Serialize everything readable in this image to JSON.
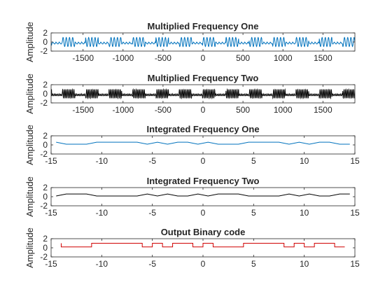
{
  "chart_data": [
    {
      "type": "line",
      "title": "Multiplied Frequency One",
      "ylabel": "Amplitude",
      "xlim": [
        -1900,
        1900
      ],
      "ylim": [
        -2,
        2
      ],
      "xticks": [
        -1500,
        -1000,
        -500,
        0,
        500,
        1000,
        1500
      ],
      "yticks": [
        -2,
        0,
        2
      ],
      "grid": false,
      "series": [
        {
          "color": "#0072BD",
          "kind": "modulated_oscillation",
          "amplitude": 1.0,
          "cycles_across_axis": 95
        }
      ]
    },
    {
      "type": "line",
      "title": "Multiplied Frequency Two",
      "ylabel": "Amplitude",
      "xlim": [
        -1900,
        1900
      ],
      "ylim": [
        -2,
        2
      ],
      "xticks": [
        -1500,
        -1000,
        -500,
        0,
        500,
        1000,
        1500
      ],
      "yticks": [
        -2,
        0,
        2
      ],
      "grid": false,
      "series": [
        {
          "color": "#000000",
          "kind": "modulated_oscillation",
          "amplitude": 1.0,
          "cycles_across_axis": 190
        }
      ]
    },
    {
      "type": "line",
      "title": "Integrated Frequency One",
      "ylabel": "Amplitude",
      "xlim": [
        -15,
        15
      ],
      "ylim": [
        -2,
        2
      ],
      "xticks": [
        -15,
        -10,
        -5,
        0,
        5,
        10,
        15
      ],
      "yticks": [
        -2,
        0,
        2
      ],
      "grid": false,
      "series": [
        {
          "color": "#0072BD",
          "x": [
            -14.5,
            -13.5,
            -12.5,
            -11.5,
            -10.5,
            -9.5,
            -8.5,
            -7.5,
            -6.5,
            -5.5,
            -4.5,
            -3.5,
            -2.5,
            -1.5,
            -0.5,
            0.5,
            1.5,
            2.5,
            3.5,
            4.5,
            5.5,
            6.5,
            7.5,
            8.5,
            9.5,
            10.5,
            11.5,
            12.5,
            13.5,
            14.5
          ],
          "y": [
            0.6,
            0.15,
            0.15,
            0.15,
            0.6,
            0.6,
            0.6,
            0.6,
            0.6,
            0.15,
            0.6,
            0.15,
            0.6,
            0.6,
            0.15,
            0.6,
            0.15,
            0.15,
            0.15,
            0.6,
            0.6,
            0.6,
            0.6,
            0.15,
            0.6,
            0.15,
            0.6,
            0.6,
            0.15,
            0.15
          ]
        }
      ]
    },
    {
      "type": "line",
      "title": "Integrated Frequency Two",
      "ylabel": "Amplitude",
      "xlim": [
        -15,
        15
      ],
      "ylim": [
        -2,
        2
      ],
      "xticks": [
        -15,
        -10,
        -5,
        0,
        5,
        10,
        15
      ],
      "yticks": [
        -2,
        0,
        2
      ],
      "grid": false,
      "series": [
        {
          "color": "#000000",
          "x": [
            -14.5,
            -13.5,
            -12.5,
            -11.5,
            -10.5,
            -9.5,
            -8.5,
            -7.5,
            -6.5,
            -5.5,
            -4.5,
            -3.5,
            -2.5,
            -1.5,
            -0.5,
            0.5,
            1.5,
            2.5,
            3.5,
            4.5,
            5.5,
            6.5,
            7.5,
            8.5,
            9.5,
            10.5,
            11.5,
            12.5,
            13.5,
            14.5
          ],
          "y": [
            0.15,
            0.6,
            0.6,
            0.6,
            0.15,
            0.15,
            0.15,
            0.15,
            0.15,
            0.6,
            0.15,
            0.6,
            0.15,
            0.15,
            0.6,
            0.15,
            0.6,
            0.6,
            0.6,
            0.15,
            0.15,
            0.15,
            0.15,
            0.6,
            0.15,
            0.6,
            0.15,
            0.15,
            0.6,
            0.6
          ]
        }
      ]
    },
    {
      "type": "line",
      "title": "Output Binary code",
      "ylabel": "Amplitude",
      "xlim": [
        -15,
        15
      ],
      "ylim": [
        -2,
        2
      ],
      "xticks": [
        -15,
        -10,
        -5,
        0,
        5,
        10,
        15
      ],
      "yticks": [
        -2,
        0,
        2
      ],
      "grid": false,
      "series": [
        {
          "color": "#D00000",
          "step": true,
          "x_start": -15,
          "x_step": 1,
          "bits": [
            1,
            0,
            0,
            0,
            1,
            1,
            1,
            1,
            1,
            0,
            1,
            0,
            1,
            1,
            0,
            1,
            0,
            0,
            0,
            1,
            1,
            1,
            1,
            0,
            1,
            0,
            1,
            1,
            0,
            0
          ]
        }
      ]
    }
  ]
}
